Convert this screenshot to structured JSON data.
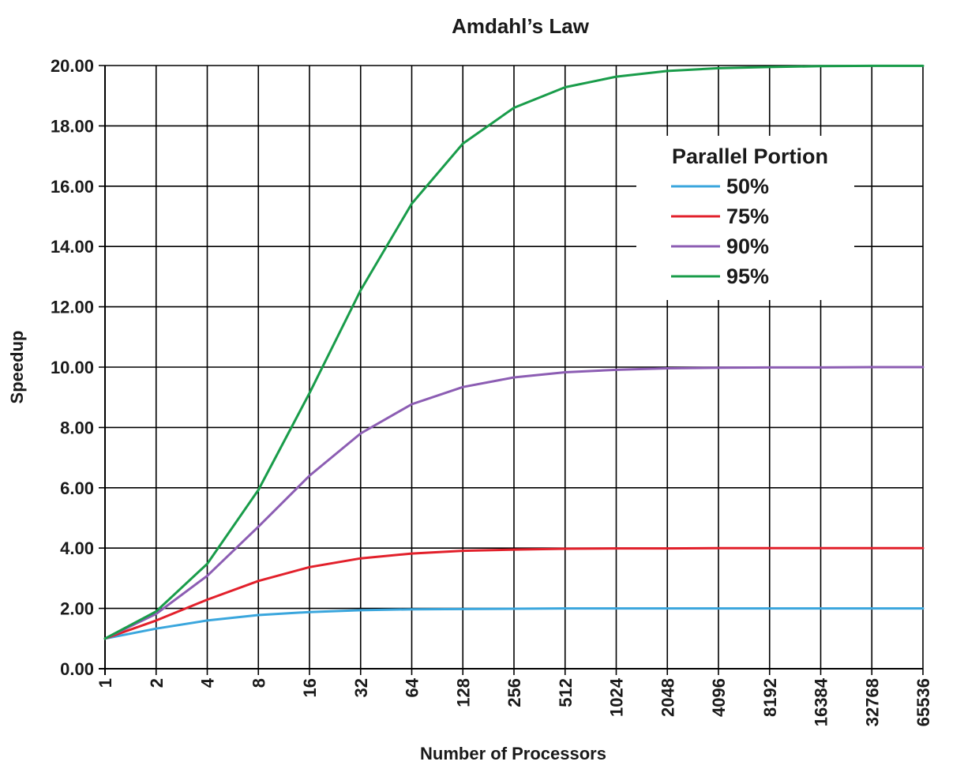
{
  "chart_data": {
    "type": "line",
    "title": "Amdahl’s Law",
    "xlabel": "Number of Processors",
    "ylabel": "Speedup",
    "x_scale": "log2",
    "x": [
      1,
      2,
      4,
      8,
      16,
      32,
      64,
      128,
      256,
      512,
      1024,
      2048,
      4096,
      8192,
      16384,
      32768,
      65536
    ],
    "x_tick_labels": [
      "1",
      "2",
      "4",
      "8",
      "16",
      "32",
      "64",
      "128",
      "256",
      "512",
      "1024",
      "2048",
      "4096",
      "8192",
      "16384",
      "32768",
      "65536"
    ],
    "ylim": [
      0,
      20
    ],
    "y_ticks": [
      0,
      2,
      4,
      6,
      8,
      10,
      12,
      14,
      16,
      18,
      20
    ],
    "y_tick_labels": [
      "0.00",
      "2.00",
      "4.00",
      "6.00",
      "8.00",
      "10.00",
      "12.00",
      "14.00",
      "16.00",
      "18.00",
      "20.00"
    ],
    "grid": true,
    "legend": {
      "title": "Parallel Portion",
      "placement": "top-right"
    },
    "series": [
      {
        "name": "50%",
        "color": "#3aa6dd",
        "values": [
          1.0,
          1.33,
          1.6,
          1.78,
          1.88,
          1.94,
          1.97,
          1.98,
          1.99,
          2.0,
          2.0,
          2.0,
          2.0,
          2.0,
          2.0,
          2.0,
          2.0
        ]
      },
      {
        "name": "75%",
        "color": "#e2202b",
        "values": [
          1.0,
          1.6,
          2.29,
          2.91,
          3.37,
          3.66,
          3.82,
          3.91,
          3.95,
          3.98,
          3.99,
          3.99,
          4.0,
          4.0,
          4.0,
          4.0,
          4.0
        ]
      },
      {
        "name": "90%",
        "color": "#8c5db3",
        "values": [
          1.0,
          1.82,
          3.08,
          4.71,
          6.4,
          7.8,
          8.77,
          9.34,
          9.66,
          9.83,
          9.91,
          9.96,
          9.98,
          9.99,
          9.99,
          10.0,
          10.0
        ]
      },
      {
        "name": "95%",
        "color": "#199c4a",
        "values": [
          1.0,
          1.9,
          3.48,
          5.93,
          9.14,
          12.55,
          15.42,
          17.41,
          18.6,
          19.28,
          19.63,
          19.82,
          19.91,
          19.95,
          19.98,
          19.99,
          19.99
        ]
      }
    ]
  }
}
